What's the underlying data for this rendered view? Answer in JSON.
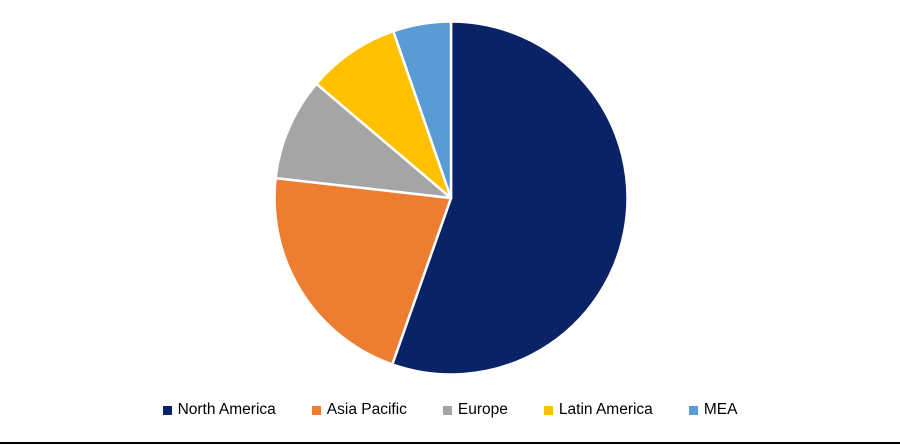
{
  "page": {
    "background_color": "#ffffff",
    "bottom_rule_color": "#000000"
  },
  "chart_data": {
    "type": "pie",
    "title": "",
    "categories": [
      "North America",
      "Asia Pacific",
      "Europe",
      "Latin America",
      "MEA"
    ],
    "values_percent": [
      55.4,
      21.4,
      9.4,
      8.5,
      5.3
    ],
    "colors": [
      "#0a2366",
      "#ed7d31",
      "#a5a5a5",
      "#ffc000",
      "#5b9bd5"
    ],
    "start_angle_deg": 0,
    "direction": "clockwise",
    "slice_border_color": "#ffffff",
    "legend_position": "bottom"
  },
  "legend": {
    "items": [
      {
        "label": "North America",
        "color": "#0a2366"
      },
      {
        "label": "Asia Pacific",
        "color": "#ed7d31"
      },
      {
        "label": "Europe",
        "color": "#a5a5a5"
      },
      {
        "label": "Latin America",
        "color": "#ffc000"
      },
      {
        "label": "MEA",
        "color": "#5b9bd5"
      }
    ]
  }
}
